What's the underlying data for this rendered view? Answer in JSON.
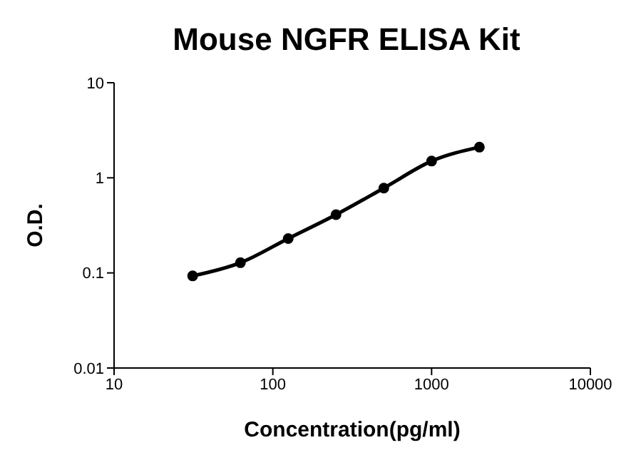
{
  "chart_data": {
    "type": "line",
    "title": "Mouse NGFR ELISA Kit",
    "xlabel": "Concentration(pg/ml)",
    "ylabel": "O.D.",
    "log": "xy",
    "marker": "circle",
    "x": [
      31.25,
      62.5,
      125,
      250,
      500,
      1000,
      2000
    ],
    "series": [
      {
        "color": "#000000",
        "values": [
          0.093,
          0.128,
          0.23,
          0.41,
          0.78,
          1.5,
          2.1
        ]
      }
    ],
    "xlim": [
      10,
      10000
    ],
    "xticks": [
      10,
      100,
      1000,
      10000
    ],
    "ylim": [
      0.01,
      10
    ],
    "yticks": [
      0.01,
      0.1,
      1,
      10
    ]
  }
}
